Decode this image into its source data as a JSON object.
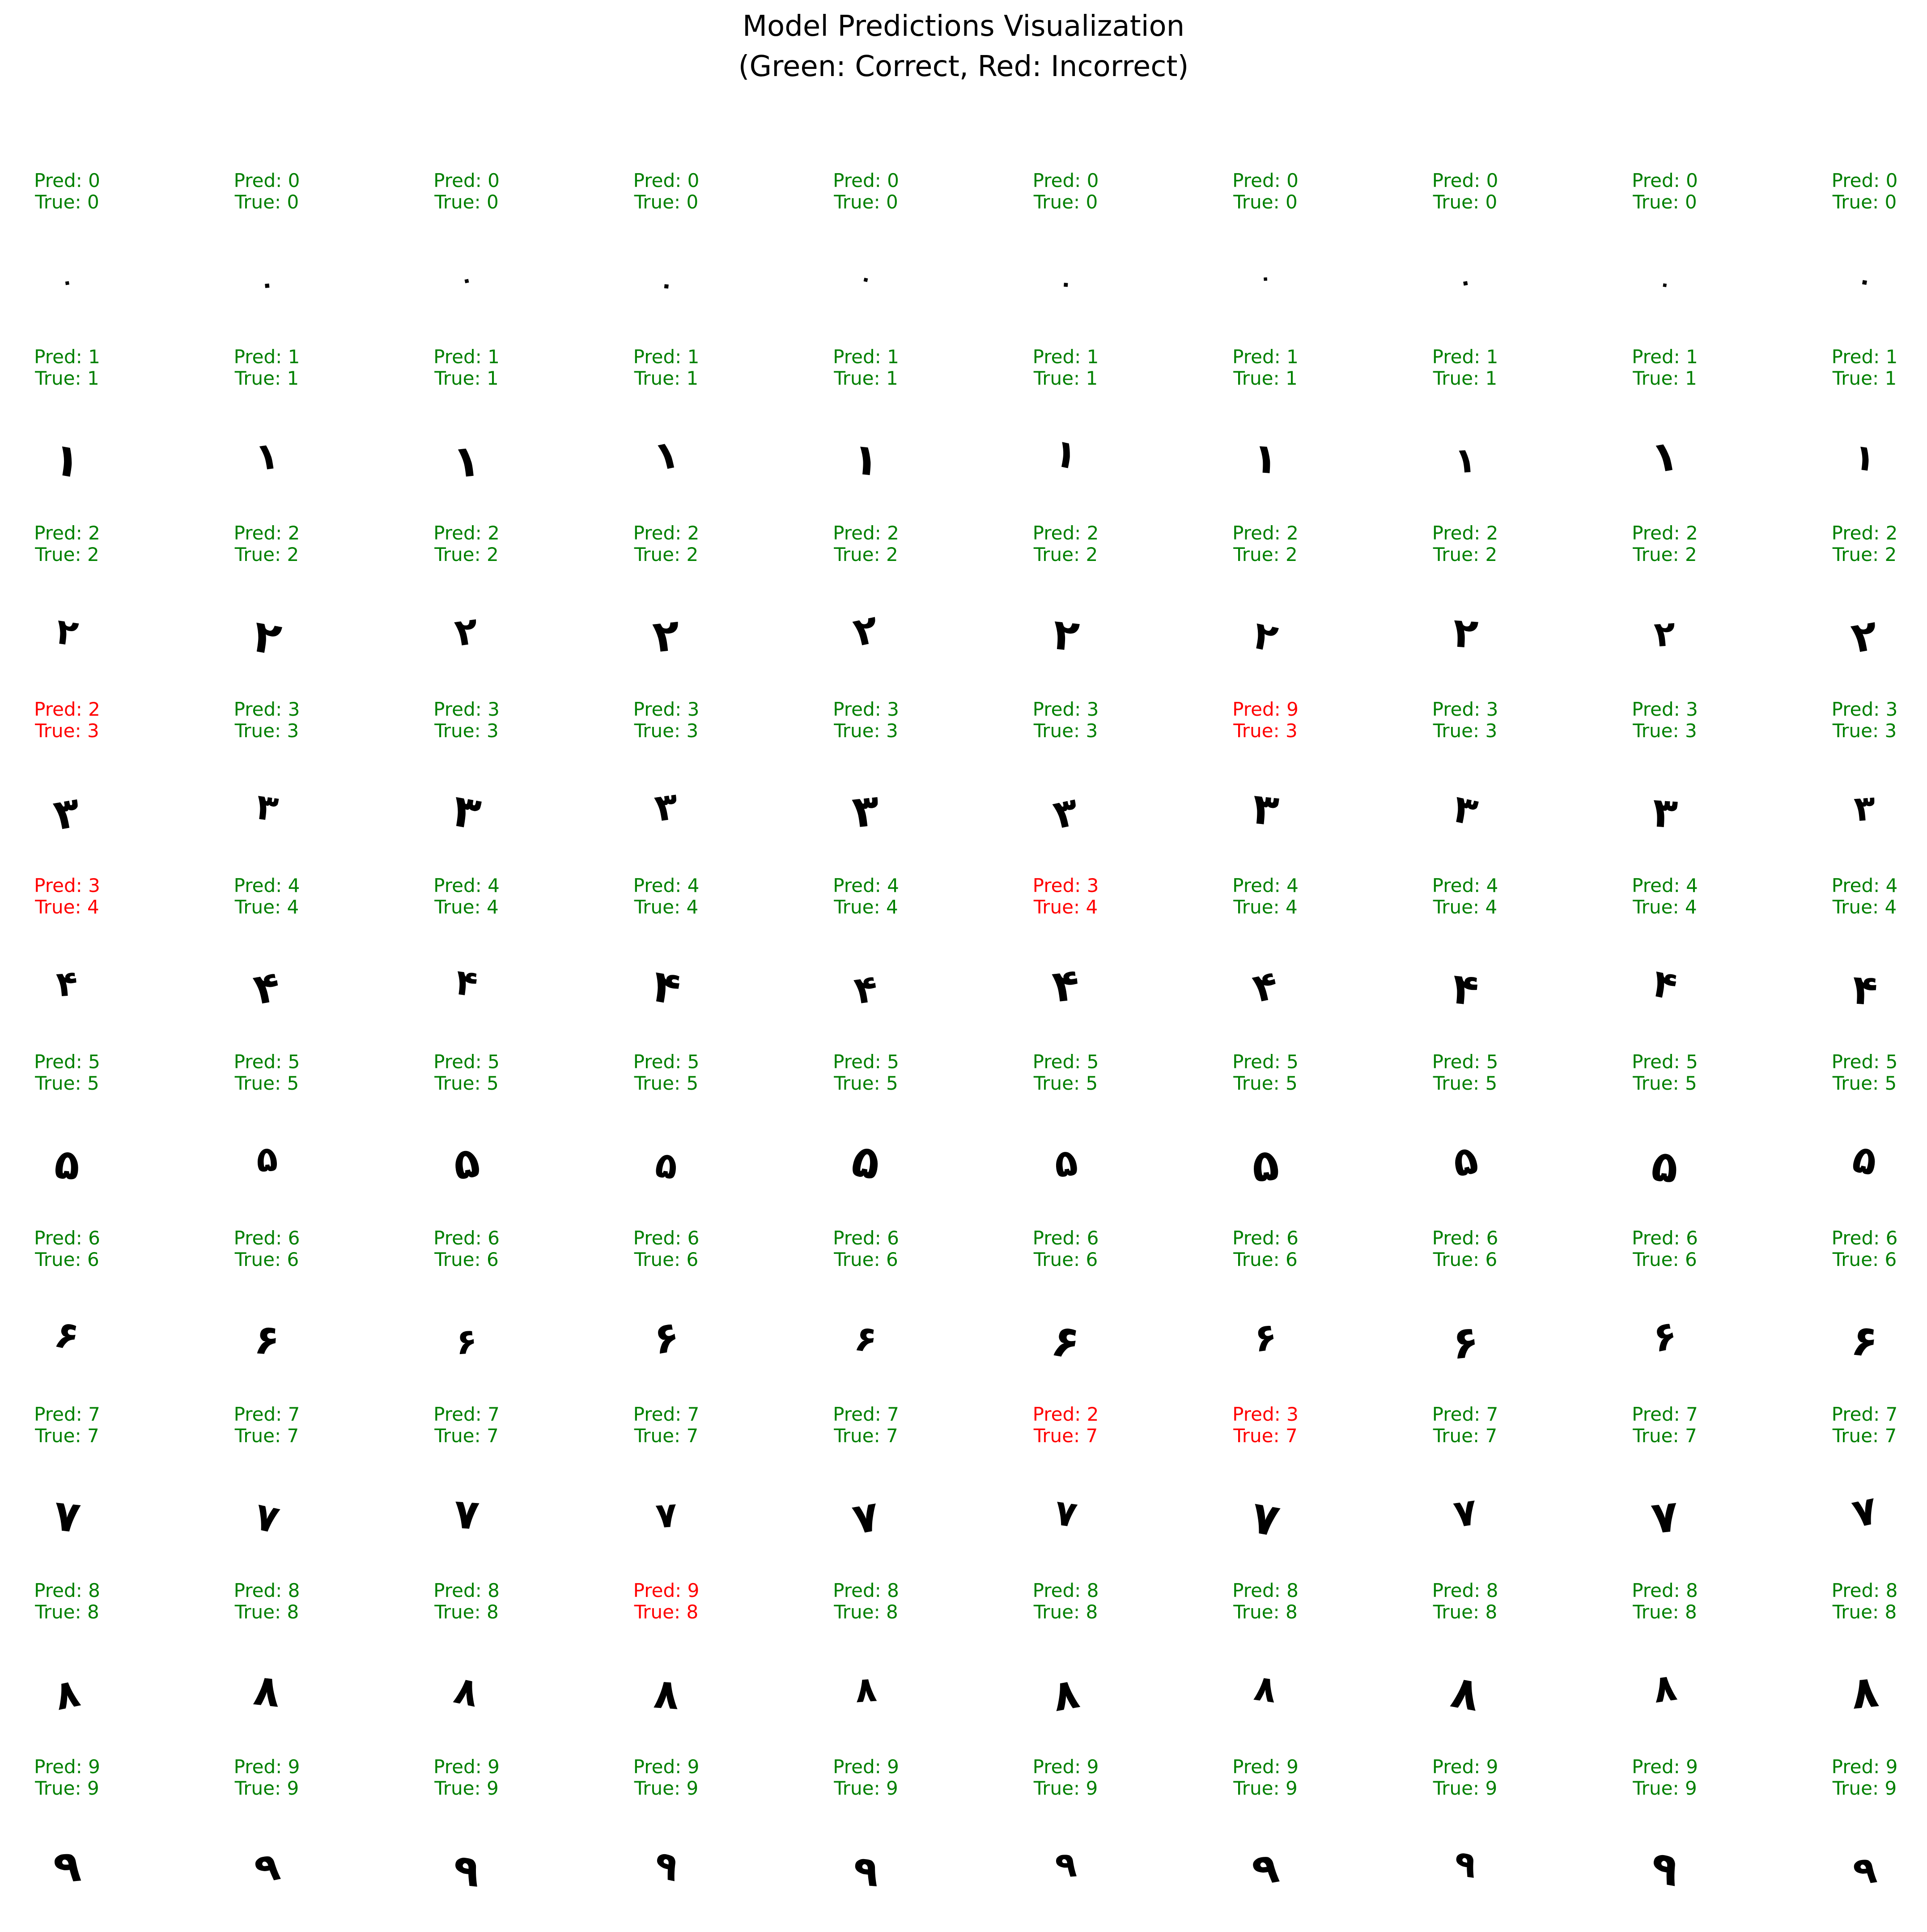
{
  "title": {
    "line1": "Model Predictions Visualization",
    "line2": "(Green: Correct, Red: Incorrect)"
  },
  "colors": {
    "correct": "#008000",
    "incorrect": "#ff0000",
    "digit": "#000000"
  },
  "label_prefixes": {
    "pred": "Pred: ",
    "true": "True: "
  },
  "persian_digits": [
    "٠",
    "١",
    "٢",
    "٣",
    "۴",
    "۵",
    "۶",
    "٧",
    "٨",
    "٩"
  ],
  "rows": [
    {
      "true": 0,
      "pred": [
        0,
        0,
        0,
        0,
        0,
        0,
        0,
        0,
        0,
        0
      ]
    },
    {
      "true": 1,
      "pred": [
        1,
        1,
        1,
        1,
        1,
        1,
        1,
        1,
        1,
        1
      ]
    },
    {
      "true": 2,
      "pred": [
        2,
        2,
        2,
        2,
        2,
        2,
        2,
        2,
        2,
        2
      ]
    },
    {
      "true": 3,
      "pred": [
        2,
        3,
        3,
        3,
        3,
        3,
        9,
        3,
        3,
        3
      ]
    },
    {
      "true": 4,
      "pred": [
        3,
        4,
        4,
        4,
        4,
        3,
        4,
        4,
        4,
        4
      ]
    },
    {
      "true": 5,
      "pred": [
        5,
        5,
        5,
        5,
        5,
        5,
        5,
        5,
        5,
        5
      ]
    },
    {
      "true": 6,
      "pred": [
        6,
        6,
        6,
        6,
        6,
        6,
        6,
        6,
        6,
        6
      ]
    },
    {
      "true": 7,
      "pred": [
        7,
        7,
        7,
        7,
        7,
        2,
        3,
        7,
        7,
        7
      ]
    },
    {
      "true": 8,
      "pred": [
        8,
        8,
        8,
        9,
        8,
        8,
        8,
        8,
        8,
        8
      ]
    },
    {
      "true": 9,
      "pred": [
        9,
        9,
        9,
        9,
        9,
        9,
        9,
        9,
        9,
        9
      ]
    }
  ]
}
